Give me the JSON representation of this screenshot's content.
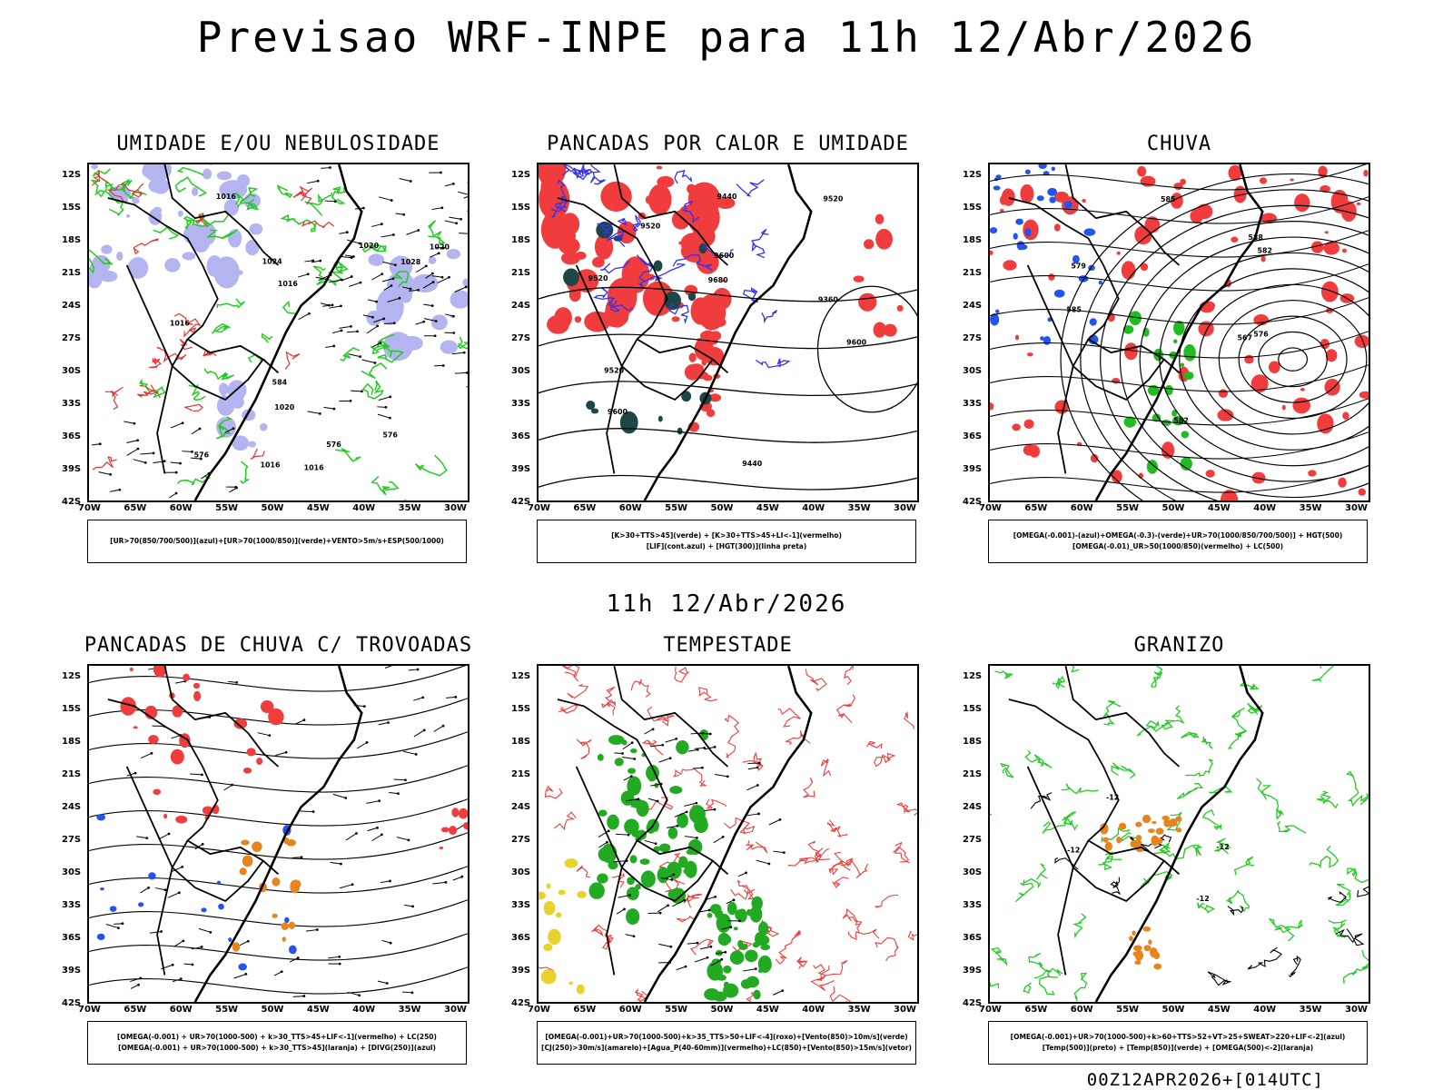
{
  "title": "Previsao WRF-INPE  para 11h 12/Abr/2026",
  "mid_label": "11h 12/Abr/2026",
  "footer": "00Z12APR2026+[014UTC]",
  "lat_ticks": [
    "12S",
    "15S",
    "18S",
    "21S",
    "24S",
    "27S",
    "30S",
    "33S",
    "36S",
    "39S",
    "42S"
  ],
  "lon_ticks": [
    "70W",
    "65W",
    "60W",
    "55W",
    "50W",
    "45W",
    "40W",
    "35W",
    "30W"
  ],
  "panels": [
    {
      "title": "UMIDADE E/OU NEBULOSIDADE",
      "legend": [
        "[UR>70(850/700/500)](azul)+[UR>70(1000/850)](verde)+VENTO>5m/s+ESP(500/1000)"
      ],
      "contour_labels": [
        "1016",
        "1016",
        "1016",
        "1020",
        "1020",
        "1020",
        "1024",
        "1028",
        "1016",
        "1016",
        "576",
        "576",
        "584",
        "576"
      ],
      "colors": {
        "fill": "#b4b4f0",
        "line1": "#22cc22",
        "line2": "#e83030",
        "iso": "#000000"
      }
    },
    {
      "title": "PANCADAS POR CALOR E UMIDADE",
      "legend": [
        "[K>30+TTS>45](verde) + [K>30+TTS>45+LI<-1](vermelho)",
        "[LIF](cont.azul) + [HGT(300)](linha preta)"
      ],
      "contour_labels": [
        "9680",
        "9600",
        "9600",
        "9600",
        "9520",
        "9520",
        "9440",
        "9360",
        "9440",
        "9520",
        "9520"
      ],
      "colors": {
        "fill1": "#f03c3c",
        "fill2": "#1e4646",
        "line": "#3232f0",
        "iso": "#000000"
      }
    },
    {
      "title": "CHUVA",
      "legend": [
        "[OMEGA(-0.001)-(azul)+OMEGA(-0.3)-(verde)+UR>70(1000/850/700/500)] + HGT(500)",
        "[OMEGA(-0.01)_UR>50(1000/850)(vermelho) + LC(500)"
      ],
      "contour_labels": [
        "588",
        "585",
        "582",
        "579",
        "576",
        "585",
        "582",
        "567"
      ],
      "colors": {
        "fill1": "#f03c3c",
        "fill2": "#2255ee",
        "fill3": "#22bb22",
        "iso": "#000000"
      }
    },
    {
      "title": "PANCADAS DE CHUVA C/ TROVOADAS",
      "legend": [
        "[OMEGA(-0.001) + UR>70(1000-500) + k>30_TTS>45+LIF<-1](vermelho) + LC(250)",
        "[OMEGA(-0.001) + UR>70(1000-500) + k>30_TTS>45](laranja) + [DIVG(250)](azul)"
      ],
      "contour_labels": [],
      "colors": {
        "fill1": "#f03c3c",
        "fill2": "#e8841e",
        "fill3": "#2255ee",
        "iso": "#000000"
      }
    },
    {
      "title": "TEMPESTADE",
      "legend": [
        "[OMEGA(-0.001)+UR>70(1000-500)+k>35_TTS>50+LIF<-4](roxo)+[Vento(850)>10m/s](verde)",
        "[CJ(250)>30m/s](amarelo)+[Agua_P(40-60mm)](vermelho)+LC(850)+[Vento(850)>15m/s](vetor)"
      ],
      "contour_labels": [],
      "colors": {
        "fill1": "#22aa22",
        "fill2": "#e8d22e",
        "line": "#f03c3c",
        "iso": "#000000"
      }
    },
    {
      "title": "GRANIZO",
      "legend": [
        "[OMEGA(-0.001)+UR>70(1000-500)+k>60+TTS>52+VT>25+SWEAT>220+LIF<-2](azul)",
        "[Temp(500)](preto) + [Temp(850)](verde) + [OMEGA(500)<-2](laranja)"
      ],
      "contour_labels": [
        "-12",
        "-12",
        "-12",
        "-12"
      ],
      "colors": {
        "fill1": "#e8841e",
        "line": "#22cc22",
        "iso": "#000000"
      }
    }
  ]
}
